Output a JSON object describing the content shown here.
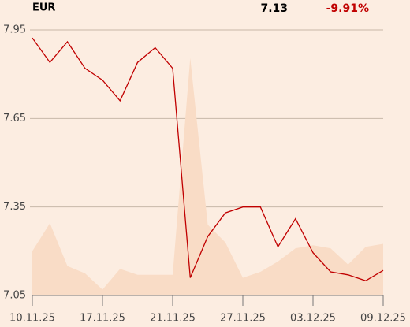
{
  "chart_data": {
    "type": "line",
    "title": "EUR",
    "price": 7.13,
    "change": {
      "value": -9.91,
      "label": "-9.91%"
    },
    "categories": [
      "10.11.25",
      null,
      null,
      null,
      "17.11.25",
      null,
      null,
      null,
      "21.11.25",
      null,
      null,
      null,
      "27.11.25",
      null,
      null,
      null,
      "03.12.25",
      null,
      null,
      null,
      "09.12.25"
    ],
    "series": [
      {
        "name": "area",
        "kind": "area",
        "color": "#f9dcc6",
        "values": [
          7.2,
          7.295,
          7.15,
          7.125,
          7.07,
          7.14,
          7.12,
          7.12,
          7.12,
          7.855,
          7.29,
          7.23,
          7.11,
          7.13,
          7.165,
          7.21,
          7.22,
          7.21,
          7.155,
          7.215,
          7.225
        ]
      },
      {
        "name": "price",
        "kind": "line",
        "color": "#c00000",
        "values": [
          7.923,
          7.84,
          7.91,
          7.82,
          7.78,
          7.71,
          7.84,
          7.89,
          7.82,
          7.11,
          7.25,
          7.33,
          7.35,
          7.35,
          7.215,
          7.31,
          7.195,
          7.13,
          7.12,
          7.1,
          7.135
        ]
      }
    ],
    "ylim": [
      7.05,
      7.95
    ],
    "yticks": [
      7.05,
      7.35,
      7.65,
      7.95
    ],
    "grid": true
  }
}
